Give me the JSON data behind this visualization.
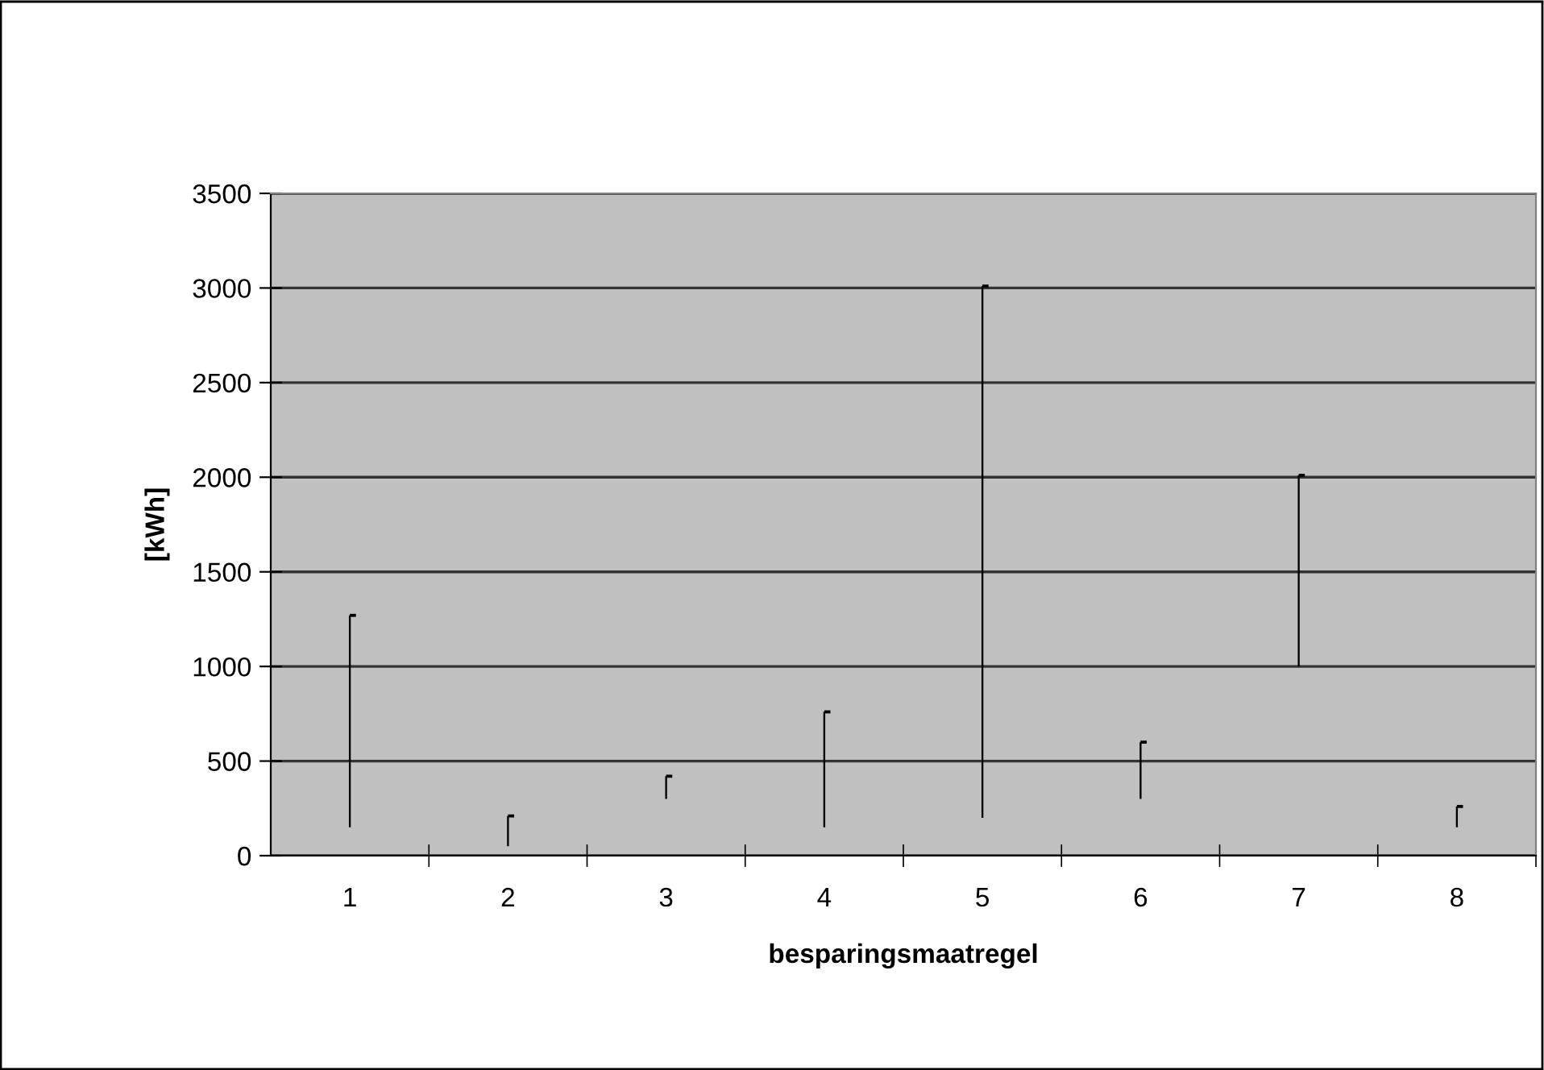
{
  "chart_data": {
    "type": "bar",
    "xlabel": "besparingsmaatregel",
    "ylabel": "[kWh]",
    "categories": [
      "1",
      "2",
      "3",
      "4",
      "5",
      "6",
      "7",
      "8"
    ],
    "series": [
      {
        "color": "#000000",
        "base": [
          150,
          50,
          300,
          150,
          200,
          300,
          1000,
          150
        ],
        "values": [
          1120,
          160,
          120,
          610,
          2810,
          300,
          1010,
          110
        ]
      },
      {
        "type": "scatter",
        "color": "#000000",
        "marker": "square",
        "x": [
          "1",
          "2",
          "3",
          "4",
          "5",
          "6",
          "7",
          "8"
        ],
        "values": [
          1270,
          210,
          420,
          760,
          3010,
          600,
          2010,
          260
        ]
      }
    ],
    "ylim": [
      0,
      3500
    ],
    "yticks": [
      0,
      500,
      1000,
      1500,
      2000,
      2500,
      3000,
      3500
    ],
    "grid": "y",
    "legend": false
  }
}
